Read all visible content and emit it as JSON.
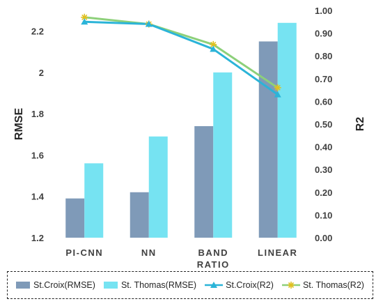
{
  "chart_data": {
    "type": "bar",
    "categories": [
      "PI-CNN",
      "NN",
      "BAND\nRATIO",
      "LINEAR"
    ],
    "ylabel": "RMSE",
    "y2label": "R2",
    "ylim": [
      1.2,
      2.3
    ],
    "y2lim": [
      0.0,
      1.0
    ],
    "yticks": [
      "1.2",
      "1.4",
      "1.6",
      "1.8",
      "2",
      "2.2"
    ],
    "y2ticks": [
      "0.00",
      "0.10",
      "0.20",
      "0.30",
      "0.40",
      "0.50",
      "0.60",
      "0.70",
      "0.80",
      "0.90",
      "1.00"
    ],
    "grid": false,
    "legend_position": "bottom",
    "bar_series": [
      {
        "name": "St.Croix(RMSE)",
        "color": "#7f9ab8",
        "values": [
          1.39,
          1.42,
          1.74,
          2.15
        ]
      },
      {
        "name": "St. Thomas(RMSE)",
        "color": "#76e3f2",
        "values": [
          1.56,
          1.69,
          2.0,
          2.24
        ]
      }
    ],
    "line_series": [
      {
        "name": "St.Croix(R2)",
        "color": "#2bb4d8",
        "marker": "triangle",
        "values": [
          0.95,
          0.94,
          0.83,
          0.63
        ]
      },
      {
        "name": "St. Thomas(R2)",
        "color": "#8dd07a",
        "marker": "star",
        "values": [
          0.97,
          0.94,
          0.85,
          0.66
        ]
      }
    ]
  }
}
